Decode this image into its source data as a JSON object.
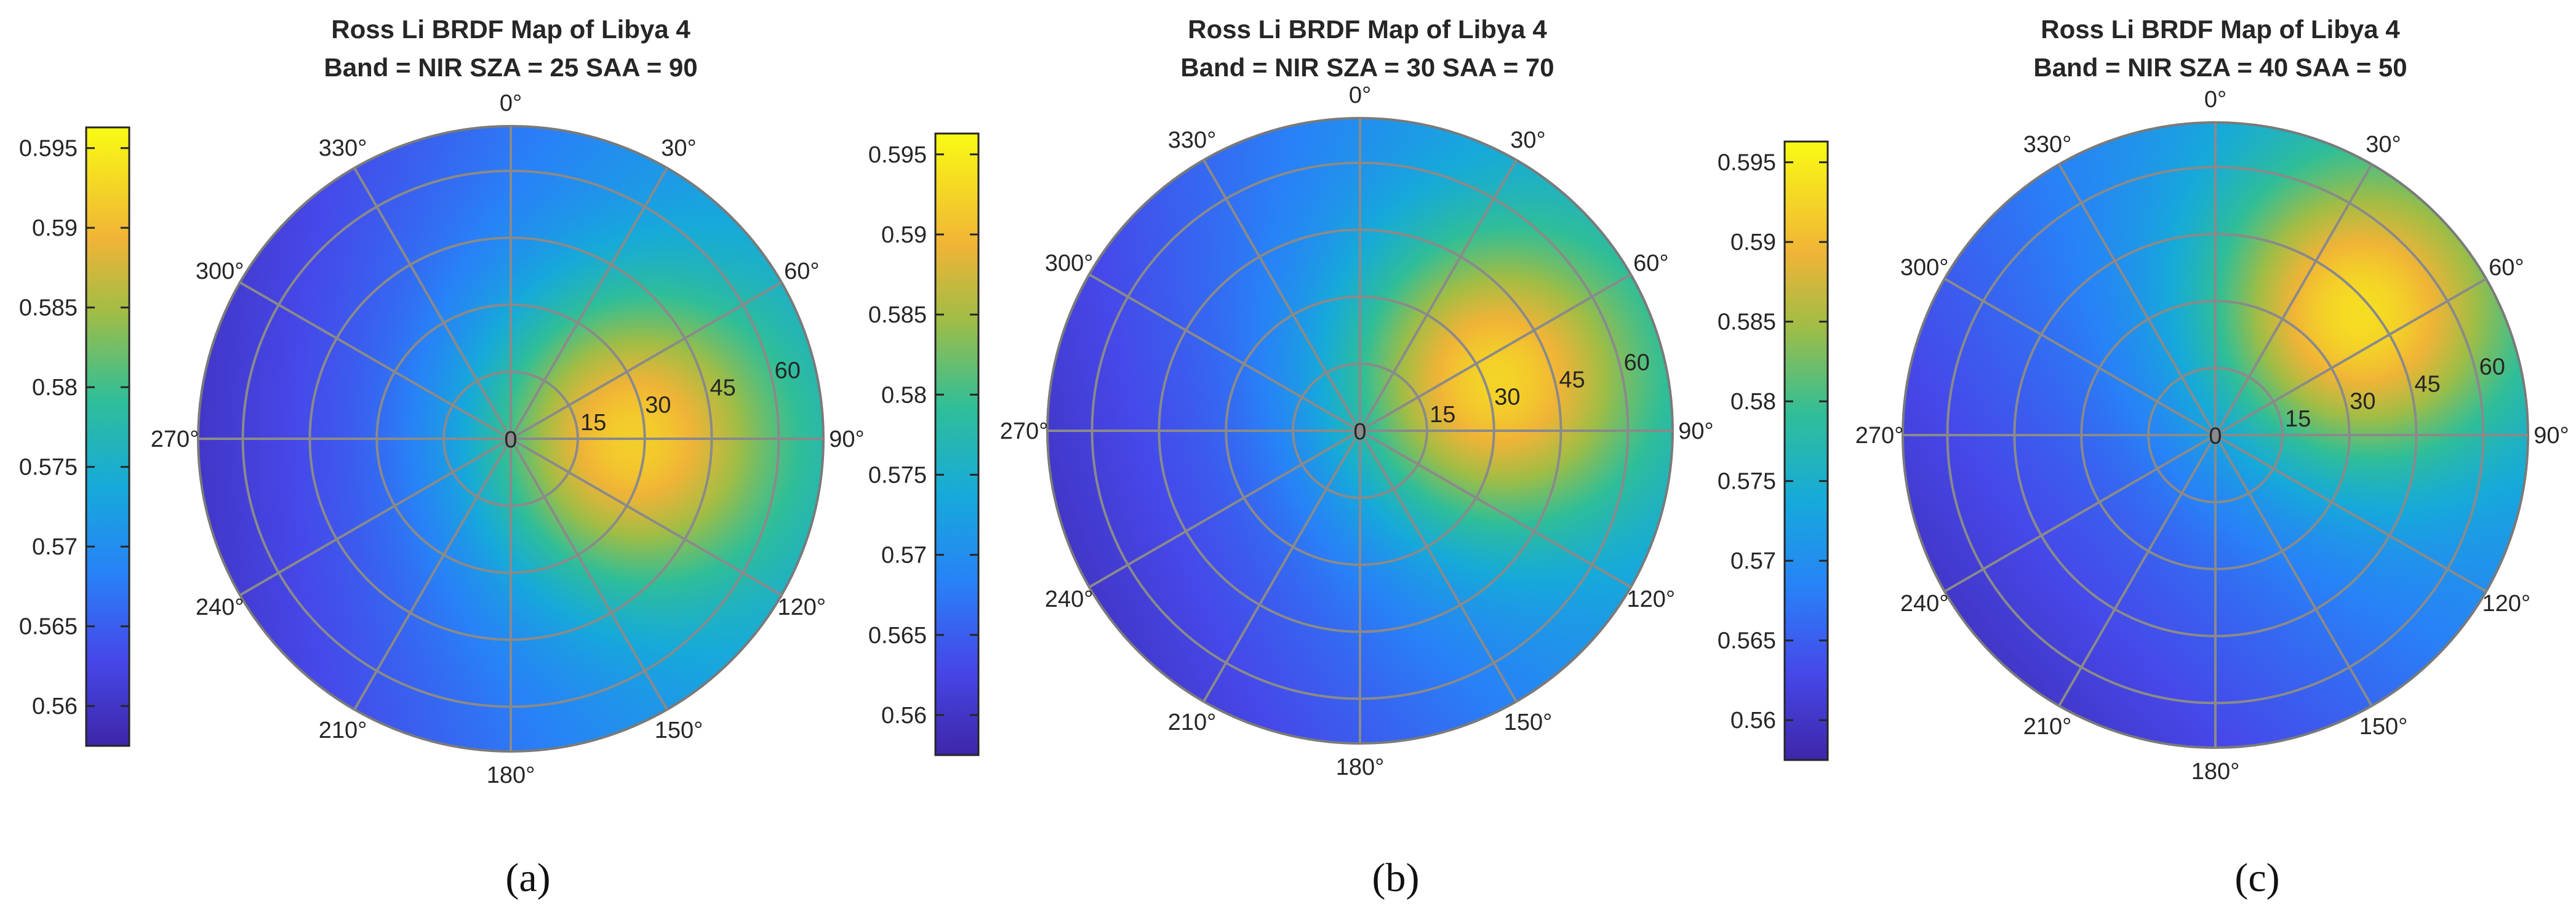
{
  "chart_data": [
    {
      "type": "heatmap",
      "polar": true,
      "title": "Ross Li BRDF Map of Libya 4",
      "subtitle": "Band = NIR  SZA = 25  SAA = 90",
      "caption": "(a)",
      "band": "NIR",
      "sza": 25,
      "saa": 90,
      "hotspot": {
        "zenith": 25,
        "azimuth": 90
      },
      "angular_ticks": [
        "0°",
        "30°",
        "60°",
        "90°",
        "120°",
        "150°",
        "180°",
        "210°",
        "240°",
        "270°",
        "300°",
        "330°"
      ],
      "radial_ticks": [
        "0",
        "15",
        "30",
        "45",
        "60"
      ],
      "radial_range": [
        0,
        70
      ],
      "colorbar": {
        "colormap": "parula",
        "range": [
          0.5575,
          0.5963
        ],
        "ticks": [
          "0.56",
          "0.565",
          "0.57",
          "0.575",
          "0.58",
          "0.585",
          "0.59",
          "0.595"
        ]
      },
      "grid": true
    },
    {
      "type": "heatmap",
      "polar": true,
      "title": "Ross Li BRDF Map of Libya 4",
      "subtitle": "Band = NIR  SZA = 30  SAA = 70",
      "caption": "(b)",
      "band": "NIR",
      "sza": 30,
      "saa": 70,
      "hotspot": {
        "zenith": 30,
        "azimuth": 70
      },
      "angular_ticks": [
        "0°",
        "30°",
        "60°",
        "90°",
        "120°",
        "150°",
        "180°",
        "210°",
        "240°",
        "270°",
        "300°",
        "330°"
      ],
      "radial_ticks": [
        "0",
        "15",
        "30",
        "45",
        "60"
      ],
      "radial_range": [
        0,
        70
      ],
      "colorbar": {
        "colormap": "parula",
        "range": [
          0.5575,
          0.5963
        ],
        "ticks": [
          "0.56",
          "0.565",
          "0.57",
          "0.575",
          "0.58",
          "0.585",
          "0.59",
          "0.595"
        ]
      },
      "grid": true
    },
    {
      "type": "heatmap",
      "polar": true,
      "title": "Ross Li BRDF Map of Libya 4",
      "subtitle": "Band = NIR  SZA = 40  SAA = 50",
      "caption": "(c)",
      "band": "NIR",
      "sza": 40,
      "saa": 50,
      "hotspot": {
        "zenith": 40,
        "azimuth": 50
      },
      "angular_ticks": [
        "0°",
        "30°",
        "60°",
        "90°",
        "120°",
        "150°",
        "180°",
        "210°",
        "240°",
        "270°",
        "300°",
        "330°"
      ],
      "radial_ticks": [
        "0",
        "15",
        "30",
        "45",
        "60"
      ],
      "radial_range": [
        0,
        70
      ],
      "colorbar": {
        "colormap": "parula",
        "range": [
          0.5575,
          0.5963
        ],
        "ticks": [
          "0.56",
          "0.565",
          "0.57",
          "0.575",
          "0.58",
          "0.585",
          "0.59",
          "0.595"
        ]
      },
      "grid": true
    }
  ]
}
